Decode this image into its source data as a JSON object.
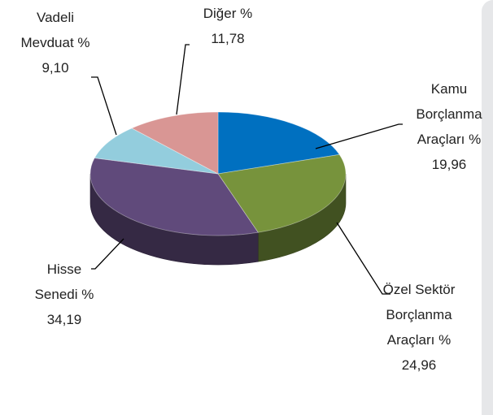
{
  "chart_data": {
    "type": "pie",
    "categories": [
      "Kamu Borçlanma Araçları",
      "Özel Sektör Borçlanma Araçları",
      "Hisse Senedi",
      "Vadeli Mevduat",
      "Diğer"
    ],
    "values": [
      19.96,
      24.96,
      34.19,
      9.1,
      11.78
    ],
    "value_labels": [
      "% 19,96",
      "% 24,96",
      "% 34,19",
      "% 9,10",
      "% 11,78"
    ],
    "colors": [
      "#0070c0",
      "#77933c",
      "#604a7b",
      "#93cddd",
      "#d99694"
    ]
  }
}
